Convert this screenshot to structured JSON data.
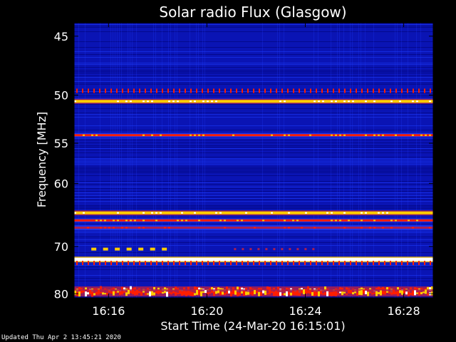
{
  "chart_data": {
    "type": "heatmap",
    "title": "Solar radio Flux (Glasgow)",
    "xlabel": "Start Time (24-Mar-20 16:15:01)",
    "ylabel": "Frequency [MHz]",
    "x_ticks": [
      "16:16",
      "16:20",
      "16:24",
      "16:28"
    ],
    "x_tick_minutes": [
      1,
      5,
      9,
      13
    ],
    "x_range_minutes": [
      -0.4,
      14.2
    ],
    "y_ticks": [
      45,
      50,
      55,
      60,
      70,
      80
    ],
    "y_range_mhz": [
      44,
      81
    ],
    "y_scale": "reciprocal",
    "colormap": [
      "#00006e",
      "#0a14b4",
      "#1e3cff",
      "#aa1e50",
      "#ff1e00",
      "#ffcc00",
      "#ffffff"
    ],
    "background_level": "low",
    "bands": [
      {
        "freq_mhz": 49.6,
        "intensity": "medium",
        "pattern": "dotted"
      },
      {
        "freq_mhz": 50.6,
        "intensity": "high",
        "pattern": "continuous"
      },
      {
        "freq_mhz": 54.1,
        "intensity": "medium",
        "pattern": "continuous"
      },
      {
        "freq_mhz": 64.3,
        "intensity": "high",
        "pattern": "continuous"
      },
      {
        "freq_mhz": 65.5,
        "intensity": "medium",
        "pattern": "continuous"
      },
      {
        "freq_mhz": 66.7,
        "intensity": "low-medium",
        "pattern": "continuous"
      },
      {
        "freq_mhz": 70.5,
        "intensity": "high",
        "pattern": "dashed",
        "minutes": [
          0.3,
          3.6
        ]
      },
      {
        "freq_mhz": 72.5,
        "intensity": "very-high",
        "pattern": "continuous"
      },
      {
        "freq_mhz": 73.2,
        "intensity": "medium",
        "pattern": "dotted"
      },
      {
        "freq_mhz": 79.1,
        "intensity": "high",
        "pattern": "noisy"
      },
      {
        "freq_mhz": 79.8,
        "intensity": "high",
        "pattern": "noisy"
      }
    ]
  },
  "footer": {
    "updated": "Updated Thu Apr  2 13:45:21 2020"
  }
}
